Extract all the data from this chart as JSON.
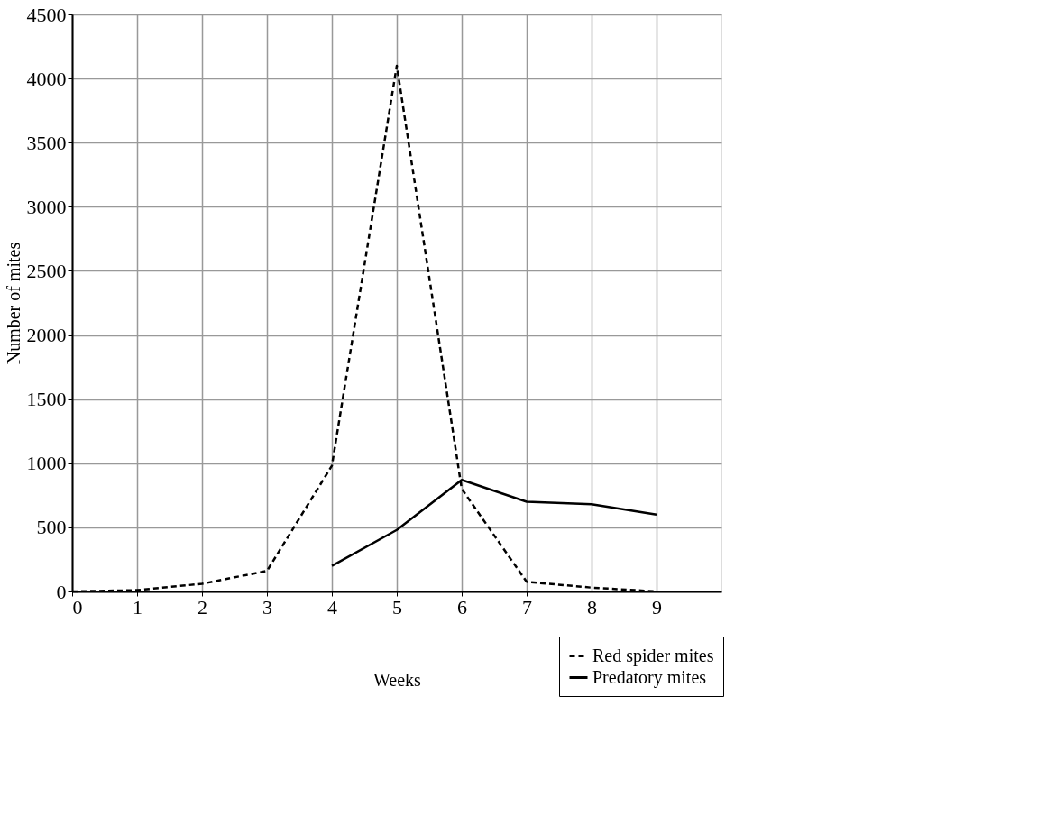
{
  "chart_data": {
    "type": "line",
    "xlabel": "Weeks",
    "ylabel": "Number of mites",
    "x": [
      0,
      1,
      2,
      3,
      4,
      5,
      6,
      7,
      8,
      9
    ],
    "series": [
      {
        "name": "Red spider mites",
        "color": "#000000",
        "line_style": "dashed",
        "values": [
          0,
          10,
          60,
          160,
          980,
          4100,
          800,
          75,
          30,
          0
        ]
      },
      {
        "name": "Predatory mites",
        "color": "#000000",
        "line_style": "solid",
        "values": [
          null,
          null,
          null,
          null,
          200,
          480,
          870,
          700,
          680,
          600
        ]
      }
    ],
    "xlim": [
      0,
      10
    ],
    "xticks": [
      0,
      1,
      2,
      3,
      4,
      5,
      6,
      7,
      8,
      9
    ],
    "ylim": [
      0,
      4500
    ],
    "yticks": [
      0,
      500,
      1000,
      1500,
      2000,
      2500,
      3000,
      3500,
      4000,
      4500
    ],
    "grid": true,
    "legend": "bottom right",
    "marker": "none"
  }
}
